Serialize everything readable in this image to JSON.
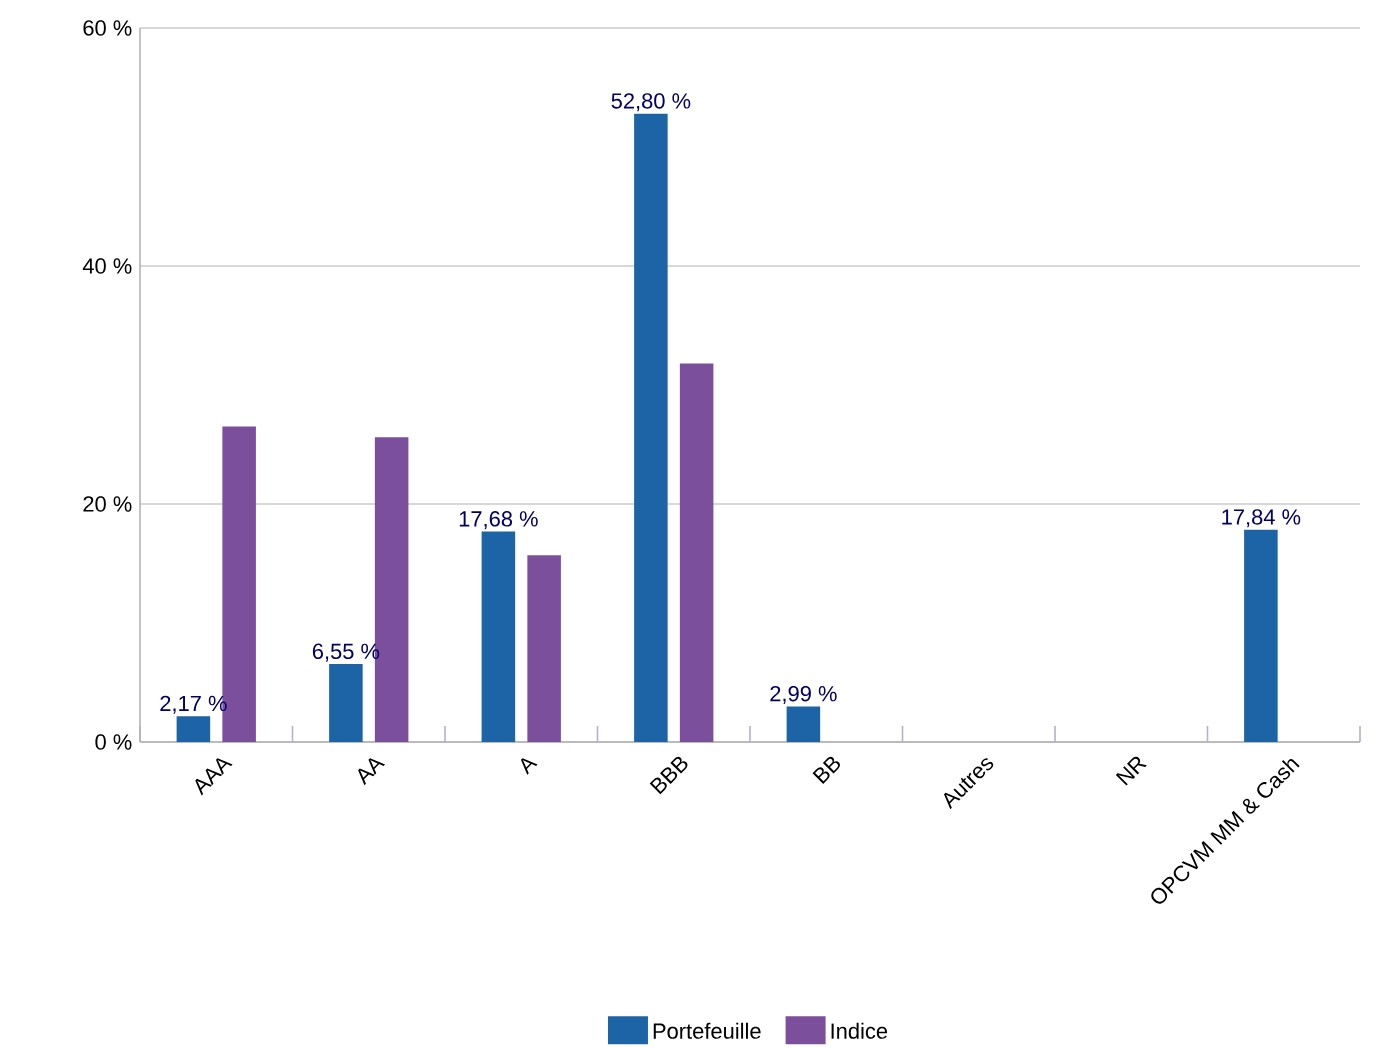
{
  "chart_data": {
    "type": "bar",
    "categories": [
      "AAA",
      "AA",
      "A",
      "BBB",
      "BB",
      "Autres",
      "NR",
      "OPCVM MM & Cash"
    ],
    "series": [
      {
        "name": "Portefeuille",
        "color": "#1c64a6",
        "values": [
          2.17,
          6.55,
          17.68,
          52.8,
          2.99,
          null,
          null,
          17.84
        ],
        "value_labels": [
          "2,17 %",
          "6,55 %",
          "17,68 %",
          "52,80 %",
          "2,99 %",
          null,
          null,
          "17,84 %"
        ]
      },
      {
        "name": "Indice",
        "color": "#7b4f9c",
        "values": [
          26.5,
          25.6,
          15.7,
          31.8,
          null,
          null,
          null,
          null
        ]
      }
    ],
    "ylim": [
      0,
      60
    ],
    "yticks": [
      {
        "value": 0,
        "label": "0 %"
      },
      {
        "value": 20,
        "label": "20 %"
      },
      {
        "value": 40,
        "label": "40 %"
      },
      {
        "value": 60,
        "label": "60 %"
      }
    ],
    "grid": "y",
    "legend": "bottom"
  }
}
